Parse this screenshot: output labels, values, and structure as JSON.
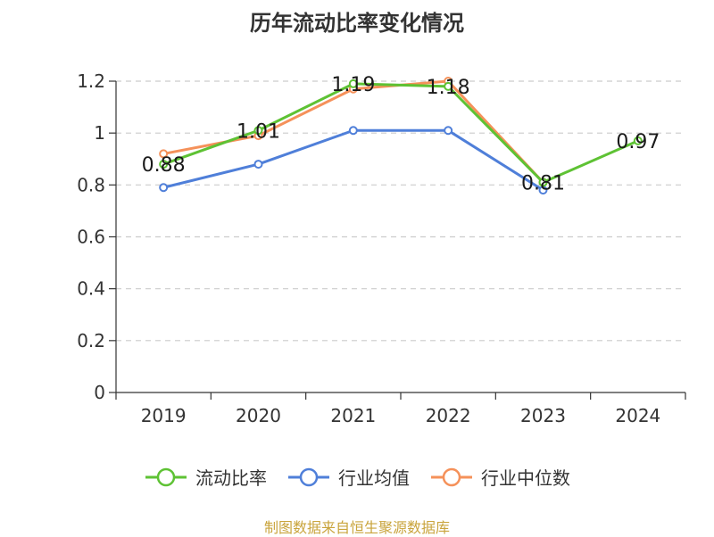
{
  "chart_data": {
    "type": "line",
    "title": "历年流动比率变化情况",
    "categories": [
      "2019",
      "2020",
      "2021",
      "2022",
      "2023",
      "2024"
    ],
    "ylim": [
      0,
      1.2
    ],
    "yticks": [
      "0",
      "0.2",
      "0.4",
      "0.6",
      "0.8",
      "1",
      "1.2"
    ],
    "grid": true,
    "legend_position": "bottom",
    "series": [
      {
        "name": "流动比率",
        "color": "#5ec234",
        "values": [
          0.88,
          1.01,
          1.19,
          1.18,
          0.81,
          0.97
        ],
        "labels": [
          "0.88",
          "1.01",
          "1.19",
          "1.18",
          "0.81",
          "0.97"
        ]
      },
      {
        "name": "行业均值",
        "color": "#4f7fd9",
        "values": [
          0.79,
          0.88,
          1.01,
          1.01,
          0.78,
          null
        ]
      },
      {
        "name": "行业中位数",
        "color": "#f5915a",
        "values": [
          0.92,
          0.99,
          1.17,
          1.2,
          0.81,
          null
        ]
      }
    ]
  },
  "source_text": "制图数据来自恒生聚源数据库"
}
